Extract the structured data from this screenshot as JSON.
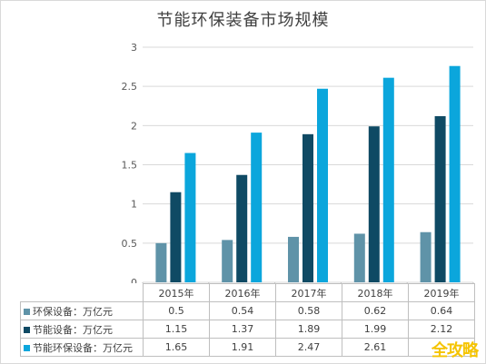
{
  "chart_data": {
    "type": "bar",
    "title": "节能环保装备市场规模",
    "categories": [
      "2015年",
      "2016年",
      "2017年",
      "2018年",
      "2019年"
    ],
    "ylim": [
      0,
      3
    ],
    "yticks": [
      0,
      0.5,
      1,
      1.5,
      2,
      2.5,
      3
    ],
    "gridlines": true,
    "legend": "data-table",
    "series": [
      {
        "name": "环保设备：万亿元",
        "color": "#5f93a8",
        "values": [
          0.5,
          0.54,
          0.58,
          0.62,
          0.64
        ],
        "labels": [
          "0.5",
          "0.54",
          "0.58",
          "0.62",
          "0.64"
        ]
      },
      {
        "name": "节能设备：万亿元",
        "color": "#0f4a64",
        "values": [
          1.15,
          1.37,
          1.89,
          1.99,
          2.12
        ],
        "labels": [
          "1.15",
          "1.37",
          "1.89",
          "1.99",
          "2.12"
        ]
      },
      {
        "name": "节能环保设备：万亿元",
        "color": "#0ba6dc",
        "values": [
          1.65,
          1.91,
          2.47,
          2.61,
          2.76
        ],
        "labels": [
          "1.65",
          "1.91",
          "2.47",
          "2.61",
          ""
        ]
      }
    ]
  },
  "watermark": "全攻略"
}
